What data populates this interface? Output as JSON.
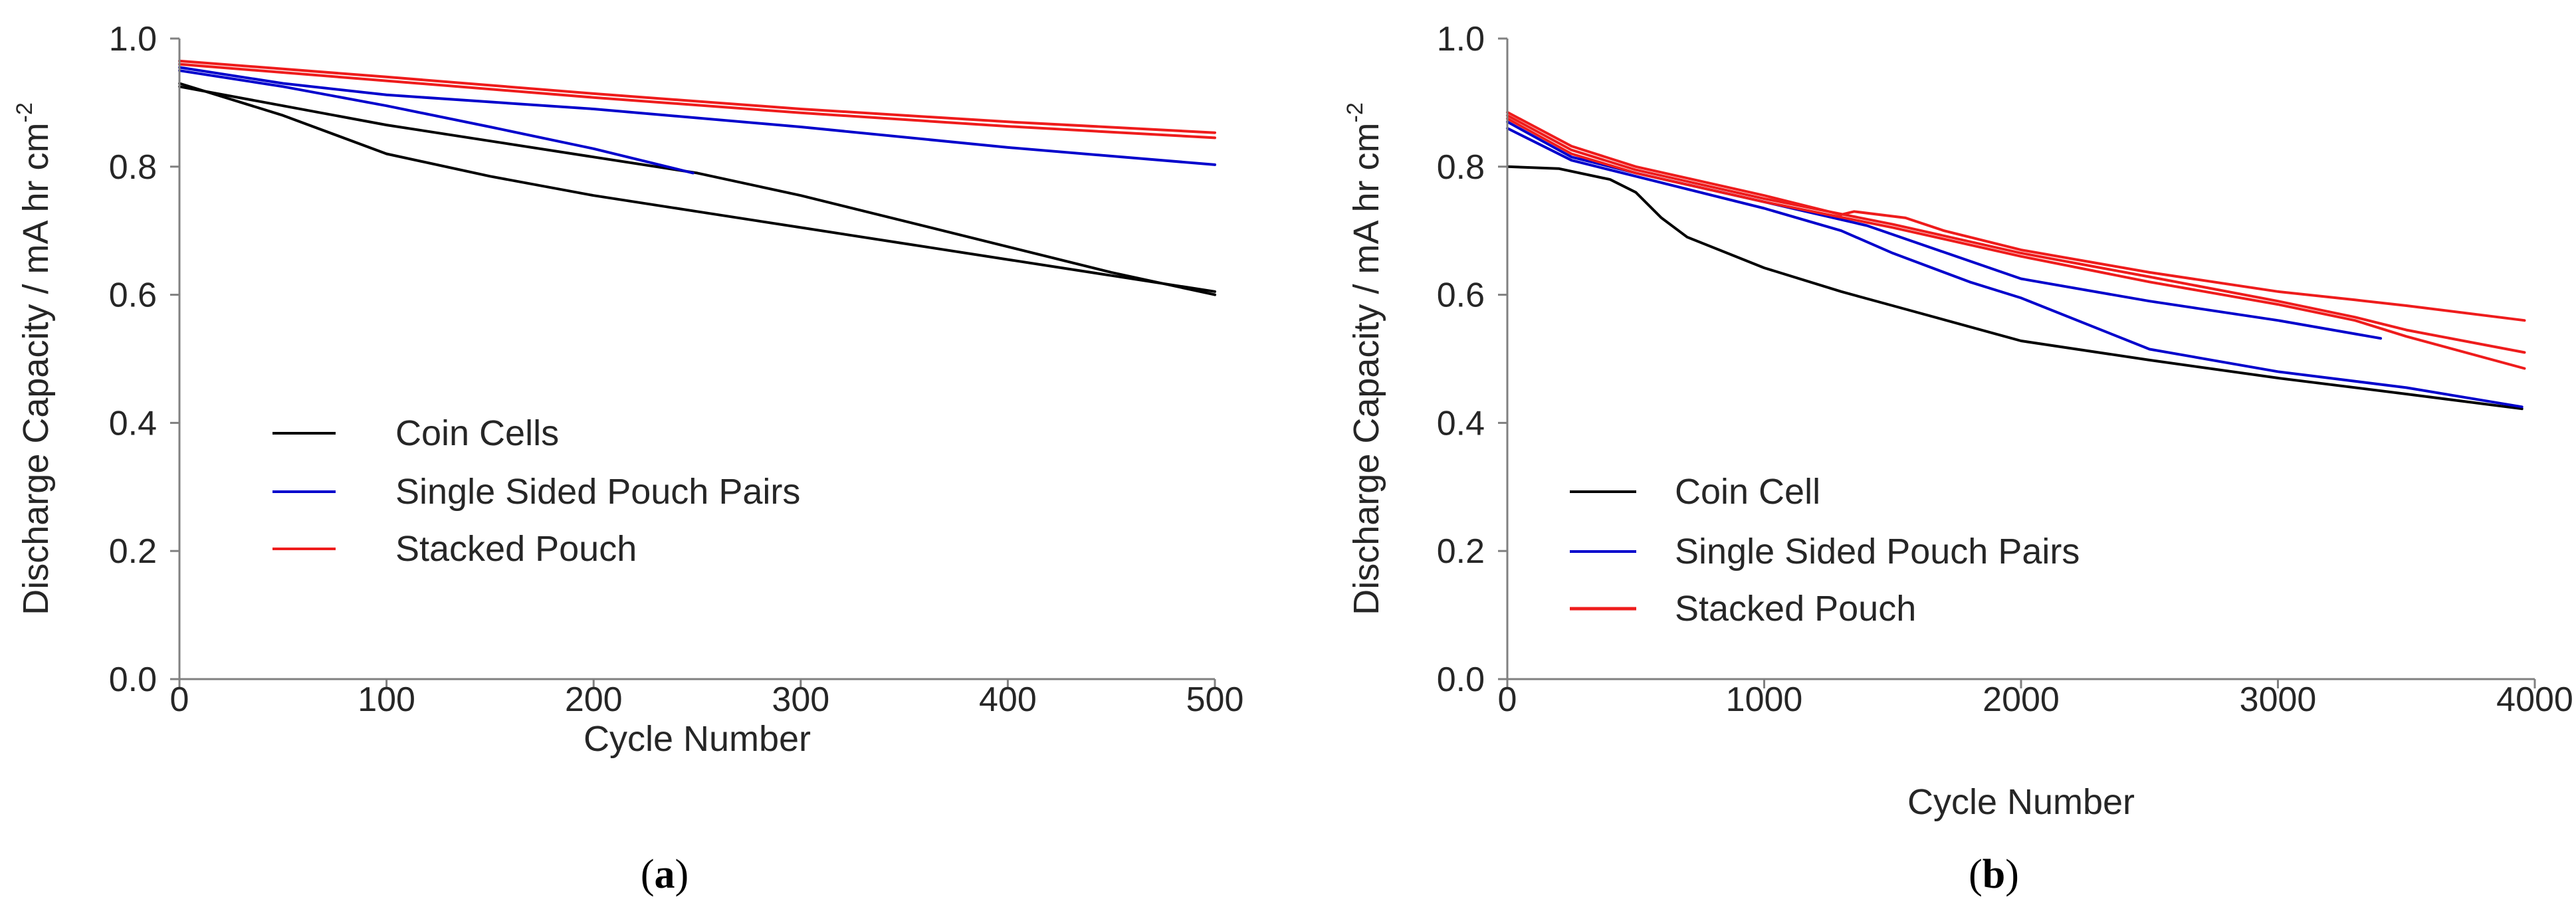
{
  "chart_data": [
    {
      "panel": "a",
      "panel_label_open": "(",
      "panel_label_letter": "a",
      "panel_label_close": ")",
      "type": "line",
      "xlabel": "Cycle Number",
      "ylabel": "Discharge Capacity / mA hr cm",
      "ylabel_sup": "-2",
      "xlim": [
        0,
        500
      ],
      "ylim": [
        0.0,
        1.0
      ],
      "xticks": [
        0,
        100,
        200,
        300,
        400,
        500
      ],
      "yticks": [
        "0.0",
        "0.2",
        "0.4",
        "0.6",
        "0.8",
        "1.0"
      ],
      "legend_position": "lower-left",
      "legend": [
        {
          "label": "Coin Cells",
          "color": "#000000"
        },
        {
          "label": "Single Sided Pouch Pairs",
          "color": "#0000cc"
        },
        {
          "label": "Stacked Pouch",
          "color": "#ee1c1c"
        }
      ],
      "series": [
        {
          "name": "Coin Cells",
          "color": "#000000",
          "points": [
            [
              0,
              0.93
            ],
            [
              50,
              0.88
            ],
            [
              100,
              0.82
            ],
            [
              150,
              0.785
            ],
            [
              200,
              0.755
            ],
            [
              250,
              0.73
            ],
            [
              300,
              0.705
            ],
            [
              350,
              0.68
            ],
            [
              400,
              0.655
            ],
            [
              450,
              0.63
            ],
            [
              500,
              0.605
            ]
          ]
        },
        {
          "name": "Coin Cells",
          "color": "#000000",
          "points": [
            [
              0,
              0.925
            ],
            [
              50,
              0.895
            ],
            [
              100,
              0.865
            ],
            [
              150,
              0.84
            ],
            [
              200,
              0.815
            ],
            [
              250,
              0.79
            ],
            [
              300,
              0.755
            ],
            [
              350,
              0.715
            ],
            [
              400,
              0.675
            ],
            [
              450,
              0.635
            ],
            [
              500,
              0.6
            ]
          ]
        },
        {
          "name": "Single Sided Pouch Pairs",
          "color": "#0000cc",
          "points": [
            [
              0,
              0.95
            ],
            [
              50,
              0.925
            ],
            [
              100,
              0.895
            ],
            [
              150,
              0.862
            ],
            [
              200,
              0.828
            ],
            [
              248,
              0.79
            ]
          ]
        },
        {
          "name": "Single Sided Pouch Pairs",
          "color": "#0000cc",
          "points": [
            [
              0,
              0.955
            ],
            [
              50,
              0.93
            ],
            [
              100,
              0.912
            ],
            [
              200,
              0.89
            ],
            [
              300,
              0.862
            ],
            [
              400,
              0.83
            ],
            [
              500,
              0.803
            ]
          ]
        },
        {
          "name": "Stacked Pouch",
          "color": "#ee1c1c",
          "points": [
            [
              0,
              0.965
            ],
            [
              100,
              0.94
            ],
            [
              200,
              0.914
            ],
            [
              300,
              0.89
            ],
            [
              400,
              0.87
            ],
            [
              500,
              0.853
            ]
          ]
        },
        {
          "name": "Stacked Pouch",
          "color": "#ee1c1c",
          "points": [
            [
              0,
              0.96
            ],
            [
              100,
              0.934
            ],
            [
              200,
              0.908
            ],
            [
              300,
              0.884
            ],
            [
              400,
              0.863
            ],
            [
              500,
              0.845
            ]
          ]
        }
      ]
    },
    {
      "panel": "b",
      "panel_label_open": "(",
      "panel_label_letter": "b",
      "panel_label_close": ")",
      "type": "line",
      "xlabel": "Cycle Number",
      "ylabel": "Discharge Capacity / mA hr cm",
      "ylabel_sup": "-2",
      "xlim": [
        0,
        4000
      ],
      "ylim": [
        0.0,
        1.0
      ],
      "xticks": [
        0,
        1000,
        2000,
        3000,
        4000
      ],
      "yticks": [
        "0.0",
        "0.2",
        "0.4",
        "0.6",
        "0.8",
        "1.0"
      ],
      "legend_position": "lower-left",
      "legend": [
        {
          "label": "Coin Cell",
          "color": "#000000"
        },
        {
          "label": "Single Sided Pouch Pairs",
          "color": "#0000cc"
        },
        {
          "label": "Stacked Pouch",
          "color": "#ee1c1c"
        }
      ],
      "series": [
        {
          "name": "Coin Cell",
          "color": "#000000",
          "points": [
            [
              0,
              0.8
            ],
            [
              200,
              0.797
            ],
            [
              400,
              0.78
            ],
            [
              500,
              0.76
            ],
            [
              600,
              0.72
            ],
            [
              700,
              0.69
            ],
            [
              1000,
              0.642
            ],
            [
              1300,
              0.605
            ],
            [
              1500,
              0.583
            ],
            [
              2000,
              0.528
            ],
            [
              2500,
              0.498
            ],
            [
              3000,
              0.47
            ],
            [
              3500,
              0.445
            ],
            [
              3950,
              0.422
            ]
          ]
        },
        {
          "name": "Single Sided Pouch Pairs",
          "color": "#0000cc",
          "points": [
            [
              0,
              0.86
            ],
            [
              250,
              0.81
            ],
            [
              500,
              0.785
            ],
            [
              1000,
              0.735
            ],
            [
              1300,
              0.7
            ],
            [
              1500,
              0.665
            ],
            [
              1800,
              0.62
            ],
            [
              2000,
              0.595
            ],
            [
              2500,
              0.515
            ],
            [
              3000,
              0.48
            ],
            [
              3500,
              0.455
            ],
            [
              3950,
              0.425
            ]
          ]
        },
        {
          "name": "Single Sided Pouch Pairs",
          "color": "#0000cc",
          "points": [
            [
              0,
              0.87
            ],
            [
              250,
              0.815
            ],
            [
              500,
              0.79
            ],
            [
              1000,
              0.745
            ],
            [
              1400,
              0.708
            ],
            [
              2000,
              0.625
            ],
            [
              2500,
              0.59
            ],
            [
              3000,
              0.56
            ],
            [
              3400,
              0.532
            ]
          ]
        },
        {
          "name": "Stacked Pouch",
          "color": "#ee1c1c",
          "points": [
            [
              0,
              0.885
            ],
            [
              250,
              0.832
            ],
            [
              500,
              0.8
            ],
            [
              1000,
              0.755
            ],
            [
              1300,
              0.725
            ],
            [
              1350,
              0.73
            ],
            [
              1550,
              0.72
            ],
            [
              1700,
              0.7
            ],
            [
              2000,
              0.67
            ],
            [
              2500,
              0.635
            ],
            [
              3000,
              0.605
            ],
            [
              3300,
              0.592
            ],
            [
              3500,
              0.583
            ],
            [
              3960,
              0.56
            ]
          ]
        },
        {
          "name": "Stacked Pouch",
          "color": "#ee1c1c",
          "points": [
            [
              0,
              0.88
            ],
            [
              250,
              0.826
            ],
            [
              500,
              0.795
            ],
            [
              1000,
              0.75
            ],
            [
              1500,
              0.71
            ],
            [
              2000,
              0.665
            ],
            [
              2500,
              0.628
            ],
            [
              3000,
              0.59
            ],
            [
              3300,
              0.565
            ],
            [
              3500,
              0.545
            ],
            [
              3960,
              0.51
            ]
          ]
        },
        {
          "name": "Stacked Pouch",
          "color": "#ee1c1c",
          "points": [
            [
              0,
              0.875
            ],
            [
              250,
              0.82
            ],
            [
              500,
              0.79
            ],
            [
              1000,
              0.745
            ],
            [
              1500,
              0.705
            ],
            [
              2000,
              0.66
            ],
            [
              2500,
              0.62
            ],
            [
              3000,
              0.585
            ],
            [
              3300,
              0.56
            ],
            [
              3500,
              0.535
            ],
            [
              3960,
              0.485
            ]
          ]
        }
      ]
    }
  ]
}
